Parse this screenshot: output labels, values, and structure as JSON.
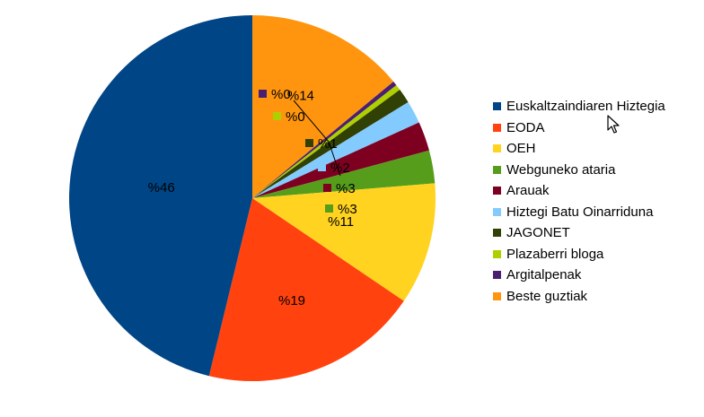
{
  "chart_data": {
    "type": "pie",
    "title": "",
    "start": "top",
    "direction": "clockwise",
    "legend_position": "right",
    "slices": [
      {
        "label": "Beste guztiak",
        "value": 14,
        "value_label": "%14",
        "color": "#ff950e"
      },
      {
        "label": "Argitalpenak",
        "value": 0.4,
        "value_label": "%0",
        "color": "#4b1f6f"
      },
      {
        "label": "Plazaberri bloga",
        "value": 0.5,
        "value_label": "%0",
        "color": "#aecf00"
      },
      {
        "label": "JAGONET",
        "value": 1.3,
        "value_label": "%1",
        "color": "#314004"
      },
      {
        "label": "Hiztegi Batu Oinarriduna",
        "value": 2,
        "value_label": "%2",
        "color": "#83caff"
      },
      {
        "label": "Arauak",
        "value": 2.6,
        "value_label": "%3",
        "color": "#7e0021"
      },
      {
        "label": "Webguneko ataria",
        "value": 2.9,
        "value_label": "%3",
        "color": "#579d1c"
      },
      {
        "label": "OEH",
        "value": 10.8,
        "value_label": "%11",
        "color": "#ffd320"
      },
      {
        "label": "EODA",
        "value": 19.3,
        "value_label": "%19",
        "color": "#ff420e"
      },
      {
        "label": "Euskaltzaindiaren Hiztegia",
        "value": 46.2,
        "value_label": "%46",
        "color": "#004586"
      }
    ],
    "legend_order": [
      "Euskaltzaindiaren Hiztegia",
      "EODA",
      "OEH",
      "Webguneko ataria",
      "Arauak",
      "Hiztegi Batu Oinarriduna",
      "JAGONET",
      "Plazaberri bloga",
      "Argitalpenak",
      "Beste guztiak"
    ]
  },
  "cursor": {
    "icon": "mouse-pointer-icon"
  }
}
